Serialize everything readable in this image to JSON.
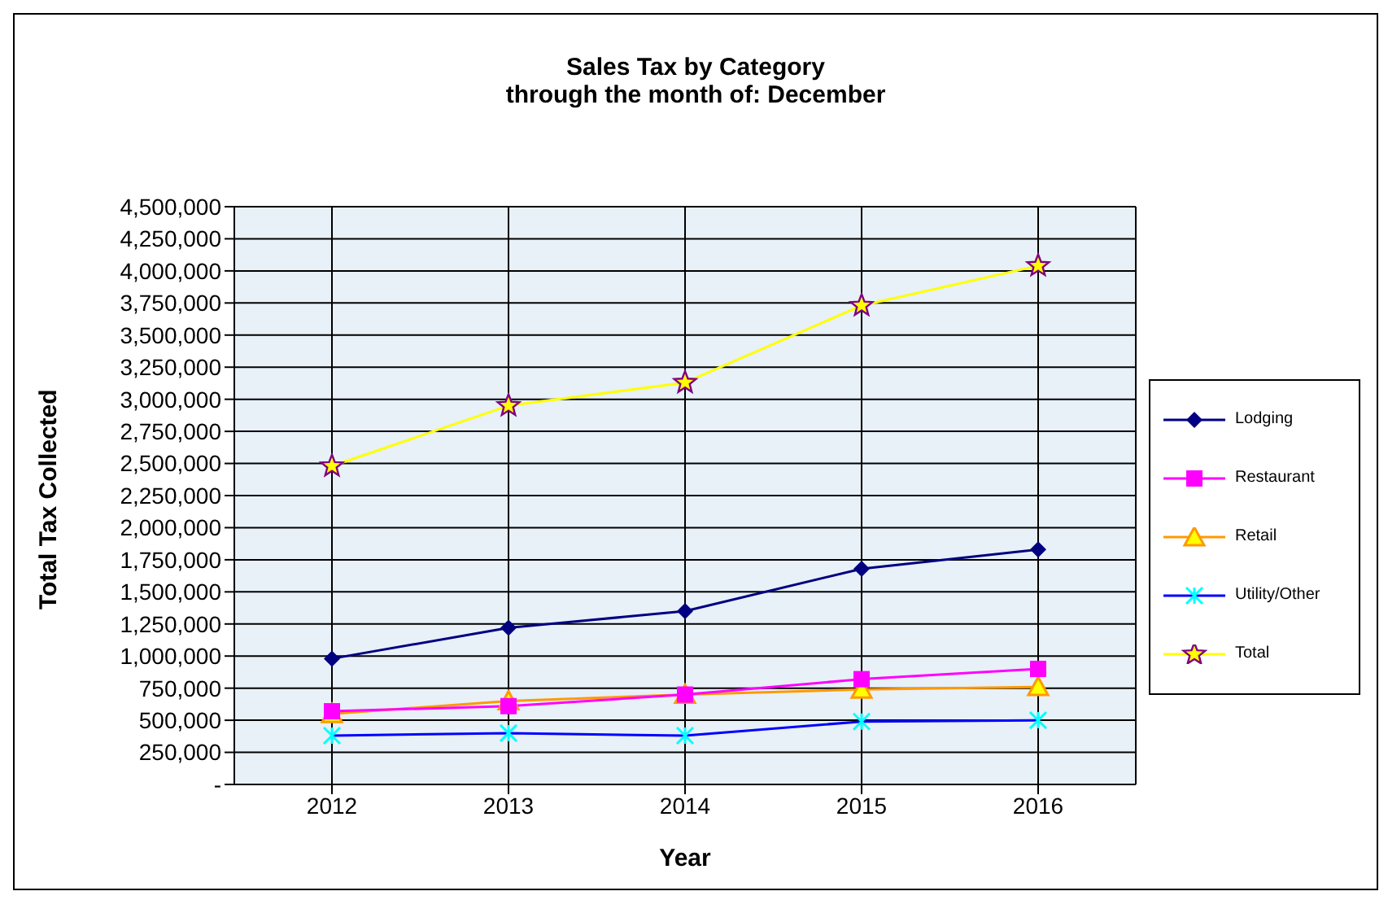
{
  "chart_data": {
    "type": "line",
    "title": "Sales Tax by Category",
    "subtitle": "through the month of: December",
    "xlabel": "Year",
    "ylabel": "Total Tax Collected",
    "categories": [
      "2012",
      "2013",
      "2014",
      "2015",
      "2016"
    ],
    "series": [
      {
        "name": "Lodging",
        "color": "#000080",
        "marker": "diamond",
        "values": [
          980000,
          1220000,
          1350000,
          1680000,
          1830000
        ]
      },
      {
        "name": "Restaurant",
        "color": "#ff00ff",
        "marker": "square",
        "values": [
          570000,
          610000,
          700000,
          820000,
          900000
        ]
      },
      {
        "name": "Retail",
        "color": "#ff9900",
        "marker": "triangle",
        "values": [
          550000,
          650000,
          700000,
          740000,
          760000
        ]
      },
      {
        "name": "Utility/Other",
        "color": "#0000ff",
        "marker": "cross",
        "values": [
          380000,
          400000,
          380000,
          490000,
          500000
        ]
      },
      {
        "name": "Total",
        "color": "#ffff00",
        "marker": "star",
        "values": [
          2480000,
          2950000,
          3130000,
          3730000,
          4040000
        ]
      }
    ],
    "ylim": [
      0,
      4500000
    ],
    "yticks": [
      {
        "value": 0,
        "label": "-"
      },
      {
        "value": 250000,
        "label": "250,000"
      },
      {
        "value": 500000,
        "label": "500,000"
      },
      {
        "value": 750000,
        "label": "750,000"
      },
      {
        "value": 1000000,
        "label": "1,000,000"
      },
      {
        "value": 1250000,
        "label": "1,250,000"
      },
      {
        "value": 1500000,
        "label": "1,500,000"
      },
      {
        "value": 1750000,
        "label": "1,750,000"
      },
      {
        "value": 2000000,
        "label": "2,000,000"
      },
      {
        "value": 2250000,
        "label": "2,250,000"
      },
      {
        "value": 2500000,
        "label": "2,500,000"
      },
      {
        "value": 2750000,
        "label": "2,750,000"
      },
      {
        "value": 3000000,
        "label": "3,000,000"
      },
      {
        "value": 3250000,
        "label": "3,250,000"
      },
      {
        "value": 3500000,
        "label": "3,500,000"
      },
      {
        "value": 3750000,
        "label": "3,750,000"
      },
      {
        "value": 4000000,
        "label": "4,000,000"
      },
      {
        "value": 4250000,
        "label": "4,250,000"
      },
      {
        "value": 4500000,
        "label": "4,500,000"
      }
    ],
    "grid": true,
    "legend": "right",
    "line_style": "solid"
  }
}
